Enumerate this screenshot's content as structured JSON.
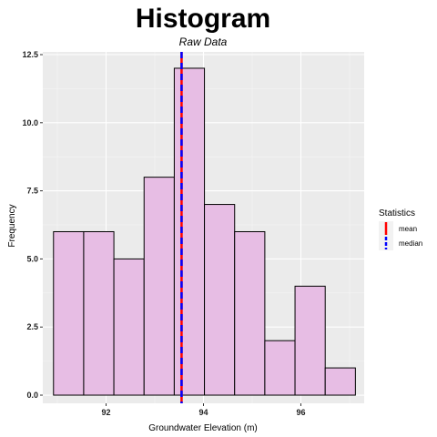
{
  "chart_data": {
    "type": "bar",
    "title": "Histogram",
    "subtitle": "Raw Data",
    "xlabel": "Groundwater Elevation (m)",
    "ylabel": "Frequency",
    "xlim": [
      90.7,
      97.3
    ],
    "ylim": [
      -0.3,
      12.6
    ],
    "xticks": [
      92,
      94,
      96
    ],
    "yticks": [
      0.0,
      2.5,
      5.0,
      7.5,
      10.0,
      12.5
    ],
    "ytick_labels": [
      "0.0",
      "2.5",
      "5.0",
      "7.5",
      "10.0",
      "12.5"
    ],
    "bins": [
      {
        "x0": 90.92,
        "x1": 91.54,
        "count": 6
      },
      {
        "x0": 91.54,
        "x1": 92.16,
        "count": 6
      },
      {
        "x0": 92.16,
        "x1": 92.78,
        "count": 5
      },
      {
        "x0": 92.78,
        "x1": 93.4,
        "count": 8
      },
      {
        "x0": 93.4,
        "x1": 94.02,
        "count": 12
      },
      {
        "x0": 94.02,
        "x1": 94.64,
        "count": 7
      },
      {
        "x0": 94.64,
        "x1": 95.26,
        "count": 6
      },
      {
        "x0": 95.26,
        "x1": 95.88,
        "count": 2
      },
      {
        "x0": 95.88,
        "x1": 96.5,
        "count": 4
      },
      {
        "x0": 96.5,
        "x1": 97.12,
        "count": 1
      }
    ],
    "bar_fill": "#e7bde4",
    "bar_stroke": "#000000",
    "panel_background": "#ebebeb",
    "grid": true,
    "stat_lines": [
      {
        "name": "mean",
        "value": 93.55,
        "color": "#ff0000",
        "style": "solid"
      },
      {
        "name": "median",
        "value": 93.55,
        "color": "#0000ff",
        "style": "dashed"
      }
    ],
    "legend": {
      "title": "Statistics",
      "position": "right",
      "items": [
        "mean",
        "median"
      ]
    }
  }
}
